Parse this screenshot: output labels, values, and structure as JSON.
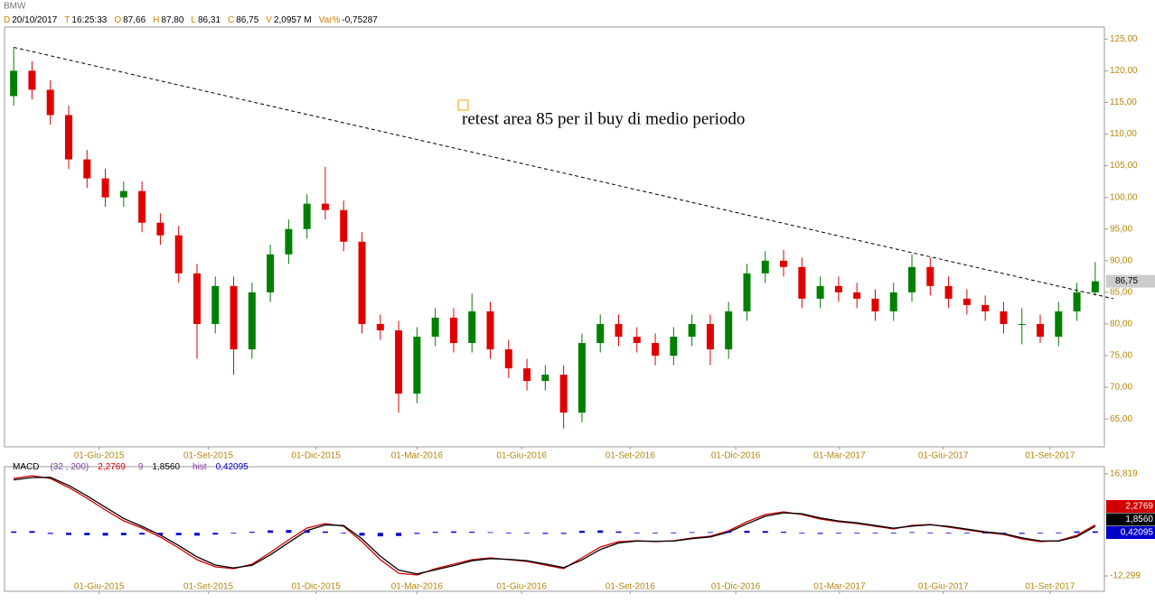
{
  "chart_data": [
    {
      "type": "candlestick",
      "title": "BMW",
      "header": [
        {
          "key": "D",
          "value": "20/10/2017"
        },
        {
          "key": "T",
          "value": "16:25:33"
        },
        {
          "key": "O",
          "value": "87,66"
        },
        {
          "key": "H",
          "value": "87,80"
        },
        {
          "key": "L",
          "value": "86,31"
        },
        {
          "key": "C",
          "value": "86,75"
        },
        {
          "key": "V",
          "value": "2,0957 M"
        },
        {
          "key": "Var%",
          "value": "-0,75287"
        }
      ],
      "categories": [
        null,
        null,
        null,
        null,
        null,
        null,
        null,
        null,
        null,
        null,
        null,
        null,
        null,
        null,
        null,
        null,
        null,
        null,
        null,
        null,
        null,
        null,
        null,
        null,
        null,
        null,
        null,
        null,
        null,
        null,
        null,
        null,
        null,
        null,
        null,
        null,
        null,
        null,
        null,
        null,
        null,
        null,
        null,
        null,
        null,
        null,
        null,
        null,
        null,
        null,
        null,
        null,
        null,
        null,
        null,
        null,
        null,
        null,
        null,
        null
      ],
      "open": [
        116,
        120,
        117,
        113,
        106,
        103,
        100,
        101,
        96,
        94,
        88,
        80,
        86,
        76,
        85,
        91,
        95,
        99,
        98,
        93,
        80,
        79,
        69,
        78,
        81,
        77,
        82,
        76,
        73,
        71,
        72,
        66,
        77,
        80,
        78,
        77,
        75,
        78,
        80,
        76,
        82,
        88,
        90,
        89,
        84,
        86,
        85,
        84,
        82,
        85,
        89,
        86,
        84,
        83,
        82,
        80,
        80,
        78,
        82,
        85
      ],
      "high": [
        123.7,
        121.5,
        118.5,
        114.5,
        107.5,
        104.5,
        102.5,
        102.5,
        97.5,
        95.5,
        89.5,
        87.5,
        87.5,
        86.5,
        92.5,
        96.5,
        100.5,
        104.8,
        99.5,
        94.5,
        81.5,
        80.5,
        79.5,
        82.5,
        82.5,
        84.8,
        83.5,
        77.5,
        74.5,
        73.5,
        73.5,
        78.5,
        81.5,
        81.5,
        79.5,
        78.5,
        79.5,
        81.5,
        81.5,
        83.5,
        89.5,
        91.5,
        91.7,
        90.5,
        87.5,
        87.5,
        86.5,
        85.5,
        86.5,
        91.0,
        90.5,
        87.5,
        85.5,
        84.5,
        83.5,
        82.5,
        81.5,
        83.5,
        86.5,
        89.8
      ],
      "low": [
        114.5,
        115.5,
        111.5,
        104.5,
        101.5,
        98.5,
        98.5,
        94.5,
        92.5,
        86.5,
        74.5,
        78.5,
        72.0,
        74.5,
        83.5,
        89.5,
        93.5,
        96.5,
        91.5,
        78.5,
        77.5,
        66.0,
        67.5,
        76.5,
        75.5,
        75.5,
        74.5,
        71.5,
        69.5,
        69.5,
        63.5,
        64.5,
        75.5,
        76.5,
        75.5,
        73.5,
        73.5,
        76.5,
        73.5,
        74.5,
        80.5,
        86.5,
        87.5,
        82.5,
        82.5,
        83.5,
        82.5,
        80.5,
        80.5,
        83.5,
        84.5,
        82.5,
        81.5,
        80.5,
        78.5,
        76.8,
        77.0,
        76.5,
        80.5,
        84.5
      ],
      "close": [
        120,
        117,
        113,
        106,
        103,
        100,
        101,
        96,
        94,
        88,
        80,
        86,
        76,
        85,
        91,
        95,
        99,
        98,
        93,
        80,
        79,
        69,
        78,
        81,
        77,
        82,
        76,
        73,
        71,
        72,
        66,
        77,
        80,
        78,
        77,
        75,
        78,
        80,
        76,
        82,
        88,
        90,
        89,
        84,
        86,
        85,
        84,
        82,
        85,
        89,
        86,
        84,
        83,
        82,
        80,
        80,
        78,
        82,
        85,
        86.75
      ],
      "up_color": "#008000",
      "down_color": "#e00000",
      "last_label": "86,75",
      "trendline": [
        123.7,
        84.0
      ],
      "annotation": "retest area 85 per il buy di medio periodo",
      "xlim": [
        -0.5,
        59.5
      ],
      "xticks": [
        {
          "value": 4.66,
          "label": "01-Giu-2015"
        },
        {
          "value": 10.62,
          "label": "01-Set-2015"
        },
        {
          "value": 16.49,
          "label": "01-Dic-2015"
        },
        {
          "value": 22.0,
          "label": "01-Mar-2016"
        },
        {
          "value": 27.71,
          "label": "01-Giu-2016"
        },
        {
          "value": 33.63,
          "label": "01-Set-2016"
        },
        {
          "value": 39.39,
          "label": "01-Dic-2016"
        },
        {
          "value": 45.05,
          "label": "01-Mar-2017"
        },
        {
          "value": 50.71,
          "label": "01-Giu-2017"
        },
        {
          "value": 56.53,
          "label": "01-Set-2017"
        }
      ],
      "ylim": [
        60.6,
        126.9
      ],
      "yticks": [
        {
          "value": 65,
          "label": "65,00"
        },
        {
          "value": 70,
          "label": "70,00"
        },
        {
          "value": 75,
          "label": "75,00"
        },
        {
          "value": 80,
          "label": "80,00"
        },
        {
          "value": 85,
          "label": "85,00"
        },
        {
          "value": 90,
          "label": "90,00"
        },
        {
          "value": 95,
          "label": "95,00"
        },
        {
          "value": 100,
          "label": "100,00"
        },
        {
          "value": 105,
          "label": "105,00"
        },
        {
          "value": 110,
          "label": "110,00"
        },
        {
          "value": 115,
          "label": "115,00"
        },
        {
          "value": 120,
          "label": "120,00"
        },
        {
          "value": 125,
          "label": "125,00"
        }
      ]
    },
    {
      "type": "macd",
      "title": "MACD",
      "series": [
        {
          "name": "(32 , 200)",
          "color": "#d00000",
          "value_label": "2,2769",
          "values": [
            15.53,
            16.3,
            15.53,
            12.95,
            9.86,
            6.51,
            3.42,
            1.36,
            -1.22,
            -4.31,
            -7.66,
            -9.72,
            -10.24,
            -8.95,
            -5.6,
            -1.99,
            1.36,
            2.65,
            1.88,
            -2.5,
            -7.66,
            -11.52,
            -12.04,
            -10.24,
            -8.95,
            -7.66,
            -7.14,
            -7.66,
            -8.17,
            -9.2,
            -10.24,
            -7.14,
            -4.05,
            -2.5,
            -2.25,
            -2.5,
            -2.25,
            -1.47,
            -0.96,
            0.59,
            3.16,
            5.23,
            6.0,
            5.23,
            3.94,
            3.16,
            2.65,
            1.88,
            1.1,
            2.13,
            2.39,
            1.62,
            0.84,
            0.07,
            -0.45,
            -1.73,
            -2.5,
            -2.25,
            -0.7,
            2.2769
          ]
        },
        {
          "name": "9",
          "color": "#000000",
          "value_label": "1,8560",
          "values": [
            15.13,
            15.8,
            15.83,
            13.55,
            10.56,
            7.31,
            4.12,
            1.86,
            -0.62,
            -3.61,
            -6.86,
            -9.22,
            -10.04,
            -9.25,
            -6.3,
            -2.79,
            0.66,
            2.25,
            2.08,
            -1.7,
            -6.66,
            -10.62,
            -11.74,
            -10.54,
            -9.35,
            -7.96,
            -7.34,
            -7.56,
            -7.97,
            -8.9,
            -9.94,
            -7.74,
            -4.75,
            -2.9,
            -2.35,
            -2.4,
            -2.35,
            -1.67,
            -1.16,
            0.19,
            2.56,
            4.73,
            5.7,
            5.43,
            4.24,
            3.36,
            2.85,
            2.08,
            1.3,
            1.93,
            2.29,
            1.82,
            1.04,
            0.27,
            -0.25,
            -1.43,
            -2.3,
            -2.35,
            -1.1,
            1.856
          ]
        },
        {
          "name": "hist",
          "color": "#0000cc",
          "value_label": "0,42095",
          "bars": true,
          "values": [
            0.4,
            0.5,
            -0.3,
            -0.6,
            -0.7,
            -0.8,
            -0.7,
            -0.5,
            -0.6,
            -0.7,
            -0.8,
            -0.5,
            -0.2,
            0.3,
            0.7,
            0.8,
            0.7,
            0.4,
            -0.2,
            -0.8,
            -1.0,
            -0.9,
            -0.3,
            0.3,
            0.4,
            0.3,
            0.2,
            -0.1,
            -0.2,
            -0.3,
            -0.3,
            0.6,
            0.7,
            0.4,
            0.1,
            -0.1,
            0.1,
            0.2,
            0.2,
            0.4,
            0.6,
            0.5,
            0.3,
            -0.2,
            -0.3,
            -0.2,
            -0.2,
            -0.2,
            -0.2,
            0.2,
            0.1,
            -0.2,
            -0.2,
            -0.2,
            -0.2,
            -0.3,
            -0.2,
            0.1,
            0.4,
            0.42095
          ]
        }
      ],
      "xlim": [
        -0.5,
        59.5
      ],
      "xticks": [
        {
          "value": 4.66,
          "label": "01-Giu-2015"
        },
        {
          "value": 10.62,
          "label": "01-Set-2015"
        },
        {
          "value": 16.49,
          "label": "01-Dic-2015"
        },
        {
          "value": 22.0,
          "label": "01-Mar-2016"
        },
        {
          "value": 27.71,
          "label": "01-Giu-2016"
        },
        {
          "value": 33.63,
          "label": "01-Set-2016"
        },
        {
          "value": 39.39,
          "label": "01-Dic-2016"
        },
        {
          "value": 45.05,
          "label": "01-Mar-2017"
        },
        {
          "value": 50.71,
          "label": "01-Giu-2017"
        },
        {
          "value": 56.53,
          "label": "01-Set-2017"
        }
      ],
      "ylim": [
        -16.68,
        18.88
      ],
      "yticks": [
        {
          "value": -12.299,
          "label": "-12,299"
        },
        {
          "value": 16.819,
          "label": "16,819"
        }
      ]
    }
  ]
}
